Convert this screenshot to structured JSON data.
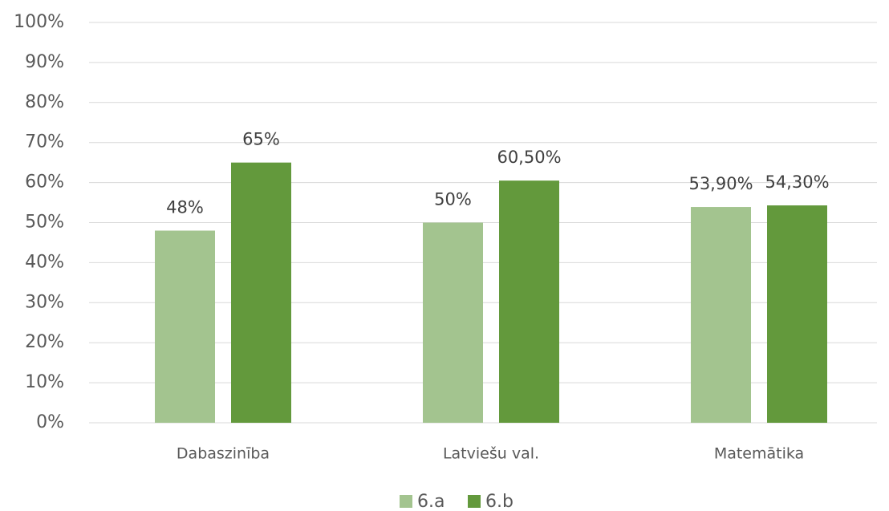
{
  "chart_data": {
    "type": "bar",
    "categories": [
      "Dabaszinība",
      "Latviešu val.",
      "Matemātika"
    ],
    "series": [
      {
        "name": "6.a",
        "color": "#a3c48f",
        "values": [
          48,
          50,
          53.9
        ],
        "value_labels": [
          "48%",
          "50%",
          "53,90%"
        ]
      },
      {
        "name": "6.b",
        "color": "#63993c",
        "values": [
          65,
          60.5,
          54.3
        ],
        "value_labels": [
          "65%",
          "60,50%",
          "54,30%"
        ]
      }
    ],
    "ylim": [
      0,
      100
    ],
    "yticks": [
      {
        "value": 0,
        "label": "0%"
      },
      {
        "value": 10,
        "label": "10%"
      },
      {
        "value": 20,
        "label": "20%"
      },
      {
        "value": 30,
        "label": "30%"
      },
      {
        "value": 40,
        "label": "40%"
      },
      {
        "value": 50,
        "label": "50%"
      },
      {
        "value": 60,
        "label": "60%"
      },
      {
        "value": 70,
        "label": "70%"
      },
      {
        "value": 80,
        "label": "80%"
      },
      {
        "value": 90,
        "label": "90%"
      },
      {
        "value": 100,
        "label": "100%"
      }
    ],
    "grid": true,
    "legend": "bottom"
  }
}
